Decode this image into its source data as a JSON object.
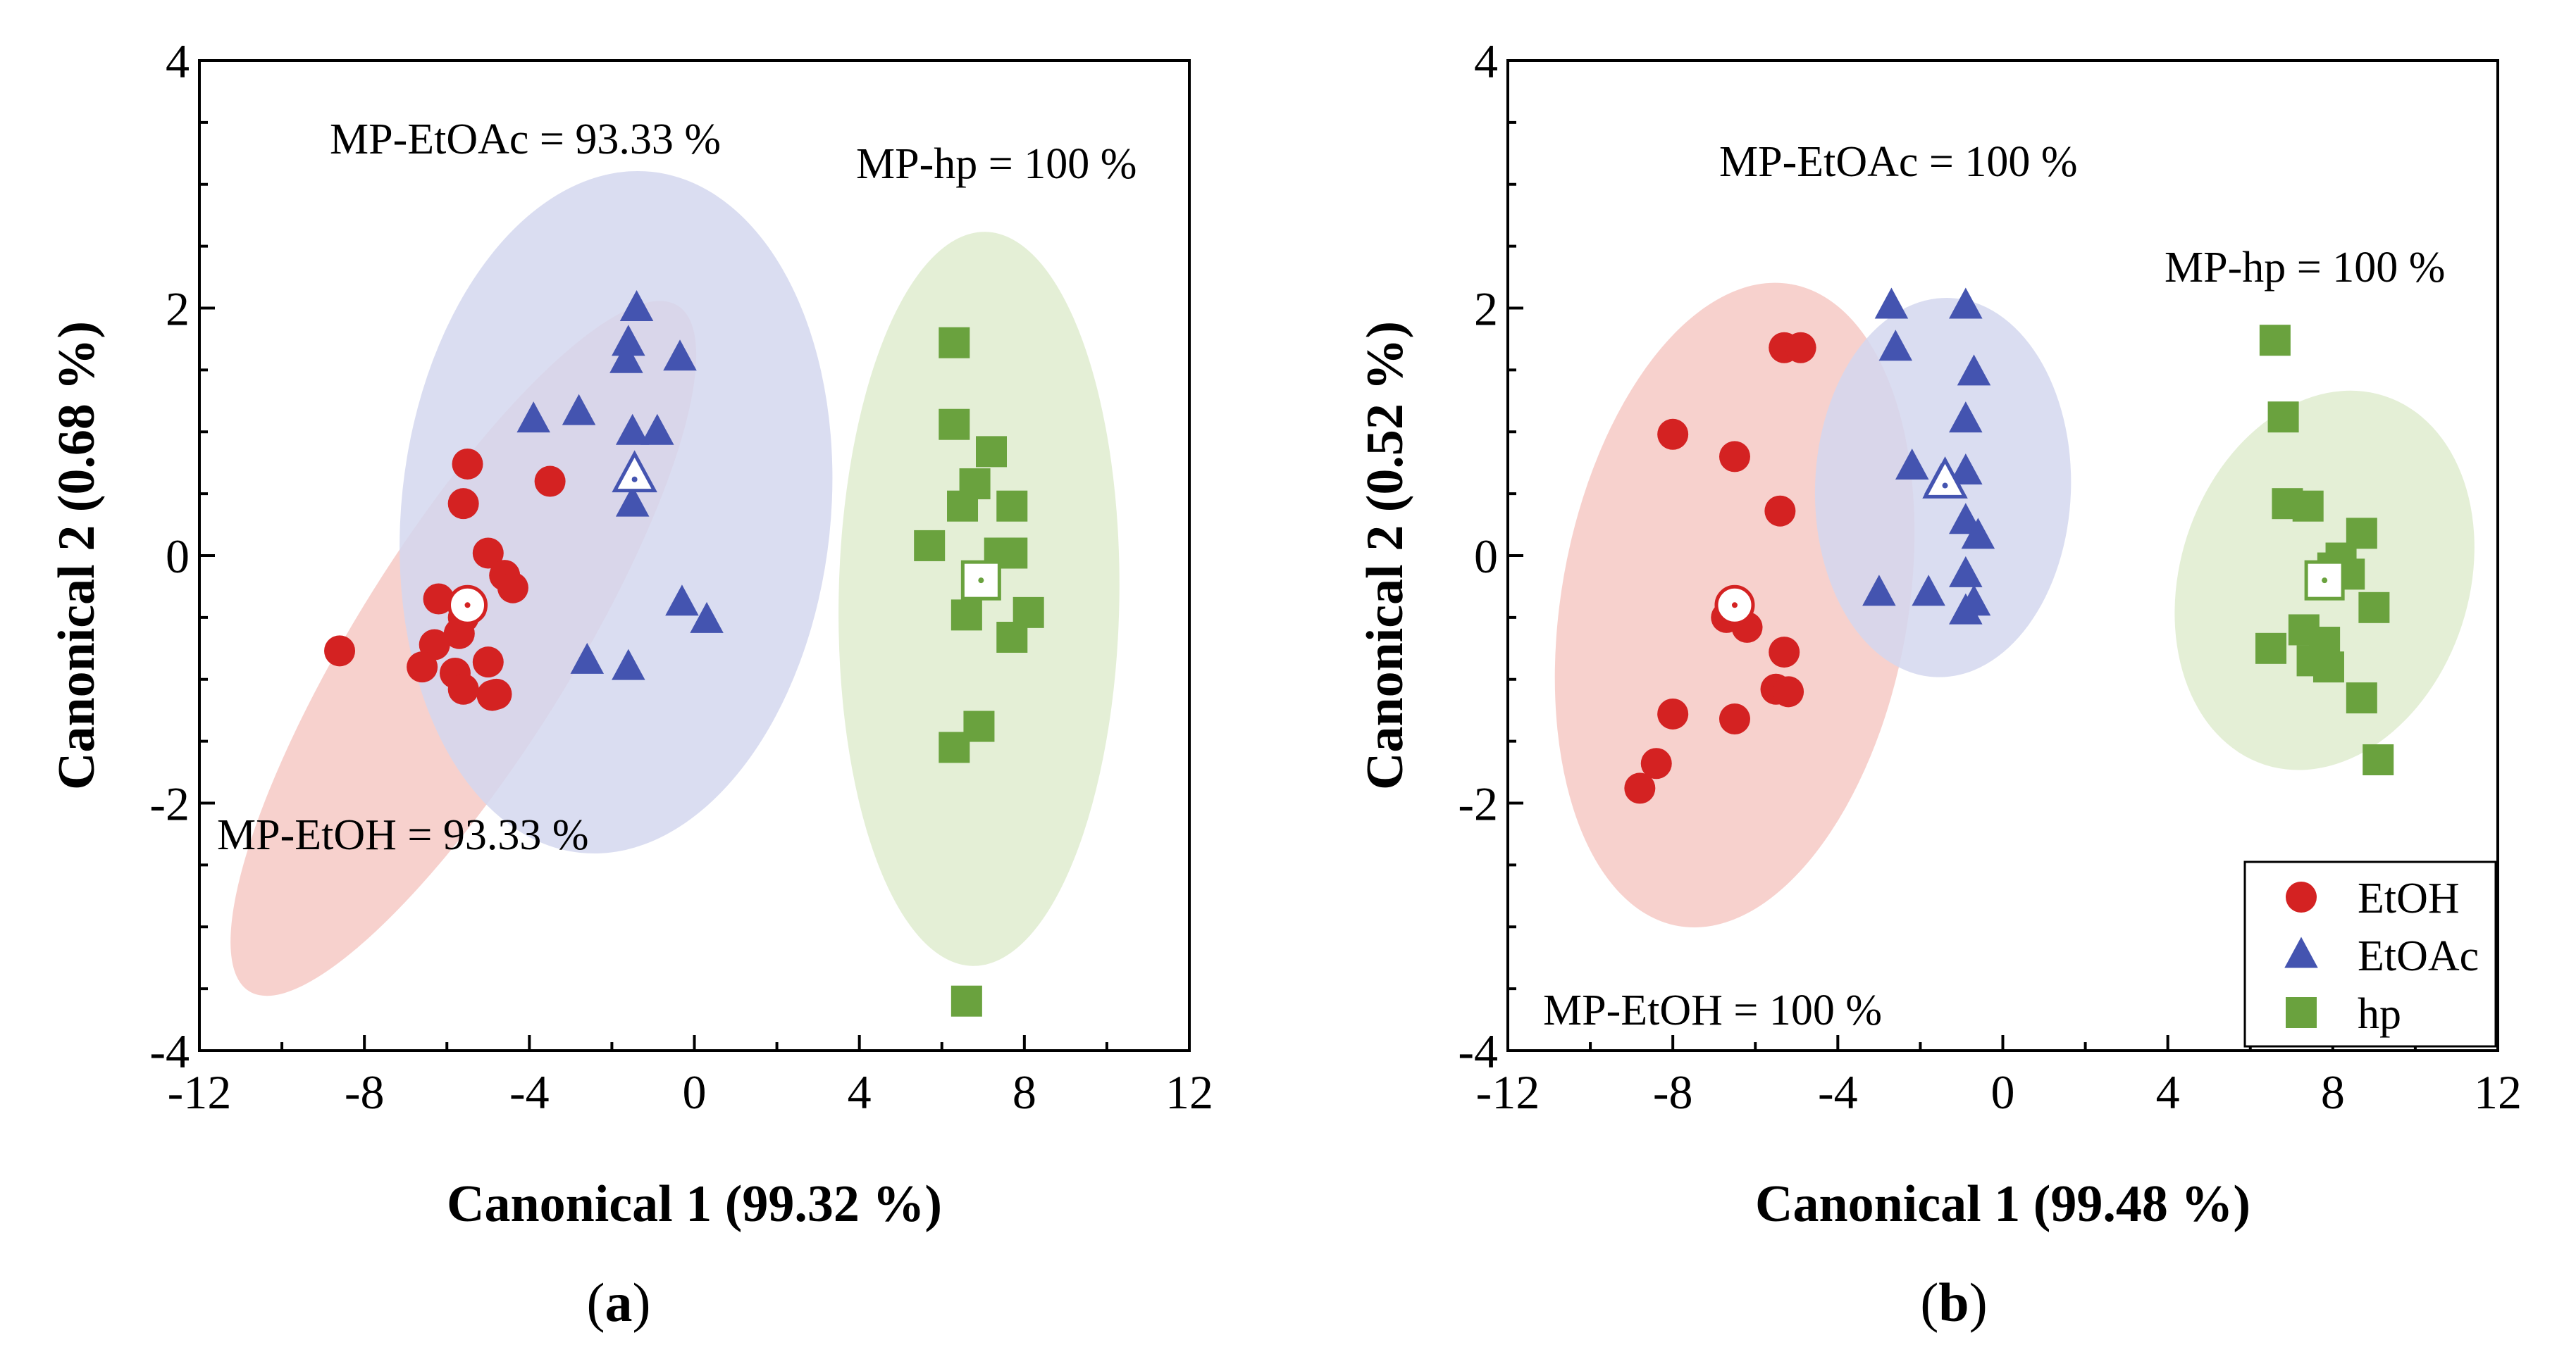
{
  "colors": {
    "EtOH": "#d42222",
    "EtOAc": "#4454b0",
    "hp": "#6aa23e",
    "EtOH_fill": "#f6c9c4",
    "EtOAc_fill": "#d3d7ee",
    "hp_fill": "#dfeccf"
  },
  "legend": {
    "entries": [
      "EtOH",
      "EtOAc",
      "hp"
    ],
    "placement": "bottom-right of panel b"
  },
  "panel_labels": [
    "a",
    "b"
  ],
  "chart_data": [
    {
      "type": "scatter",
      "panel": "a",
      "xlabel": "Canonical 1 (99.32 %)",
      "ylabel": "Canonical  2 (0.68 %)",
      "xlim": [
        -12,
        12
      ],
      "ylim": [
        -4,
        4
      ],
      "xticks": [
        -12,
        -8,
        -4,
        0,
        4,
        8,
        12
      ],
      "yticks": [
        -4,
        -2,
        0,
        2,
        4
      ],
      "xtick_labels": [
        "-12",
        "-8",
        "-4",
        "0",
        "4",
        "8",
        "12"
      ],
      "ytick_labels": [
        "-4",
        "-2",
        "0",
        "2",
        "4"
      ],
      "annotations": [
        {
          "text": "MP-EtOAc = 93.33 %"
        },
        {
          "text": "MP-hp = 100 %"
        },
        {
          "text": "MP-EtOH = 93.33 %"
        }
      ],
      "ellipses": [
        {
          "group": "EtOH",
          "cx": -5.6,
          "cy": -0.75,
          "rx": 4.9,
          "ry": 1.3,
          "rotation_deg": -58
        },
        {
          "group": "EtOAc",
          "cx": -1.9,
          "cy": 0.35,
          "rx": 4.15,
          "ry": 2.6,
          "rotation_deg": -84
        },
        {
          "group": "hp",
          "cx": 6.9,
          "cy": -0.35,
          "rx": 4.45,
          "ry": 1.7,
          "rotation_deg": -89
        }
      ],
      "series": [
        {
          "name": "EtOH",
          "marker": "circle",
          "centroid": [
            -5.5,
            -0.4
          ],
          "x": [
            -5.5,
            -5.6,
            -3.5,
            -5.0,
            -4.6,
            -4.4,
            -6.2,
            -5.7,
            -8.6,
            -6.3,
            -6.6,
            -5.8,
            -5.0,
            -5.6,
            -4.9,
            -4.8,
            -5.4,
            -5.6
          ],
          "y": [
            0.74,
            0.42,
            0.6,
            0.02,
            -0.16,
            -0.26,
            -0.35,
            -0.63,
            -0.77,
            -0.72,
            -0.9,
            -0.95,
            -0.86,
            -1.08,
            -1.13,
            -1.12,
            -0.42,
            -0.5
          ]
        },
        {
          "name": "EtOAc",
          "marker": "triangle",
          "centroid": [
            -1.45,
            0.65
          ],
          "x": [
            -1.4,
            -1.6,
            -1.65,
            -3.9,
            -2.8,
            -1.5,
            -0.9,
            -1.5,
            -0.35,
            -0.3,
            0.3,
            -2.6,
            -1.6
          ],
          "y": [
            2.0,
            1.72,
            1.58,
            1.1,
            1.16,
            1.0,
            1.0,
            0.42,
            1.6,
            -0.38,
            -0.52,
            -0.85,
            -0.9
          ]
        },
        {
          "name": "hp",
          "marker": "square",
          "centroid": [
            6.95,
            -0.2
          ],
          "x": [
            6.3,
            6.3,
            7.2,
            6.8,
            6.5,
            7.7,
            7.4,
            7.7,
            5.7,
            6.6,
            8.1,
            7.7,
            6.9,
            6.3,
            6.6
          ],
          "y": [
            1.72,
            1.06,
            0.84,
            0.58,
            0.4,
            0.4,
            0.02,
            0.02,
            0.08,
            -0.48,
            -0.46,
            -0.66,
            -1.38,
            -1.55,
            -3.6
          ]
        }
      ]
    },
    {
      "type": "scatter",
      "panel": "b",
      "xlabel": "Canonical 1 (99.48 %)",
      "ylabel": "Canonical  2 (0.52 %)",
      "xlim": [
        -12,
        12
      ],
      "ylim": [
        -4,
        4
      ],
      "xticks": [
        -12,
        -8,
        -4,
        0,
        4,
        8,
        12
      ],
      "yticks": [
        -4,
        -2,
        0,
        2,
        4
      ],
      "xtick_labels": [
        "-12",
        "-8",
        "-4",
        "0",
        "4",
        "8",
        "12"
      ],
      "ytick_labels": [
        "-4",
        "-2",
        "0",
        "2",
        "4"
      ],
      "annotations": [
        {
          "text": "MP-EtOAc = 100 %"
        },
        {
          "text": "MP-hp = 100 %"
        },
        {
          "text": "MP-EtOH = 100 %"
        }
      ],
      "ellipses": [
        {
          "group": "EtOH",
          "cx": -6.5,
          "cy": -0.4,
          "rx": 3.95,
          "ry": 2.1,
          "rotation_deg": -80
        },
        {
          "group": "EtOAc",
          "cx": -1.45,
          "cy": 0.55,
          "rx": 2.3,
          "ry": 1.55,
          "rotation_deg": -88
        },
        {
          "group": "hp",
          "cx": 7.8,
          "cy": -0.2,
          "rx": 2.35,
          "ry": 1.75,
          "rotation_deg": -72
        }
      ],
      "series": [
        {
          "name": "EtOH",
          "marker": "circle",
          "centroid": [
            -6.5,
            -0.4
          ],
          "x": [
            -5.3,
            -4.9,
            -8.0,
            -6.5,
            -5.4,
            -6.7,
            -6.2,
            -5.3,
            -5.5,
            -5.2,
            -8.0,
            -6.5,
            -8.4,
            -8.8
          ],
          "y": [
            1.68,
            1.68,
            0.98,
            0.8,
            0.36,
            -0.5,
            -0.58,
            -0.78,
            -1.08,
            -1.1,
            -1.28,
            -1.32,
            -1.68,
            -1.88
          ]
        },
        {
          "name": "EtOAc",
          "marker": "triangle",
          "centroid": [
            -1.4,
            0.6
          ],
          "x": [
            -2.7,
            -0.9,
            -2.6,
            -0.7,
            -0.9,
            -2.2,
            -0.9,
            -1.5,
            -0.9,
            -0.6,
            -3.0,
            -1.8,
            -0.9,
            -0.7,
            -0.9
          ],
          "y": [
            2.02,
            2.02,
            1.68,
            1.48,
            1.1,
            0.72,
            0.68,
            0.6,
            0.28,
            0.16,
            -0.3,
            -0.3,
            -0.15,
            -0.38,
            -0.45
          ]
        },
        {
          "name": "hp",
          "marker": "square",
          "centroid": [
            7.8,
            -0.2
          ],
          "x": [
            6.6,
            6.8,
            6.9,
            7.4,
            8.2,
            8.7,
            8.0,
            8.4,
            9.0,
            6.5,
            7.3,
            7.8,
            7.5,
            7.9,
            8.7,
            9.1
          ],
          "y": [
            1.74,
            1.12,
            0.42,
            0.4,
            -0.02,
            0.18,
            -0.1,
            -0.15,
            -0.42,
            -0.75,
            -0.6,
            -0.7,
            -0.85,
            -0.9,
            -1.15,
            -1.65
          ]
        }
      ]
    }
  ]
}
